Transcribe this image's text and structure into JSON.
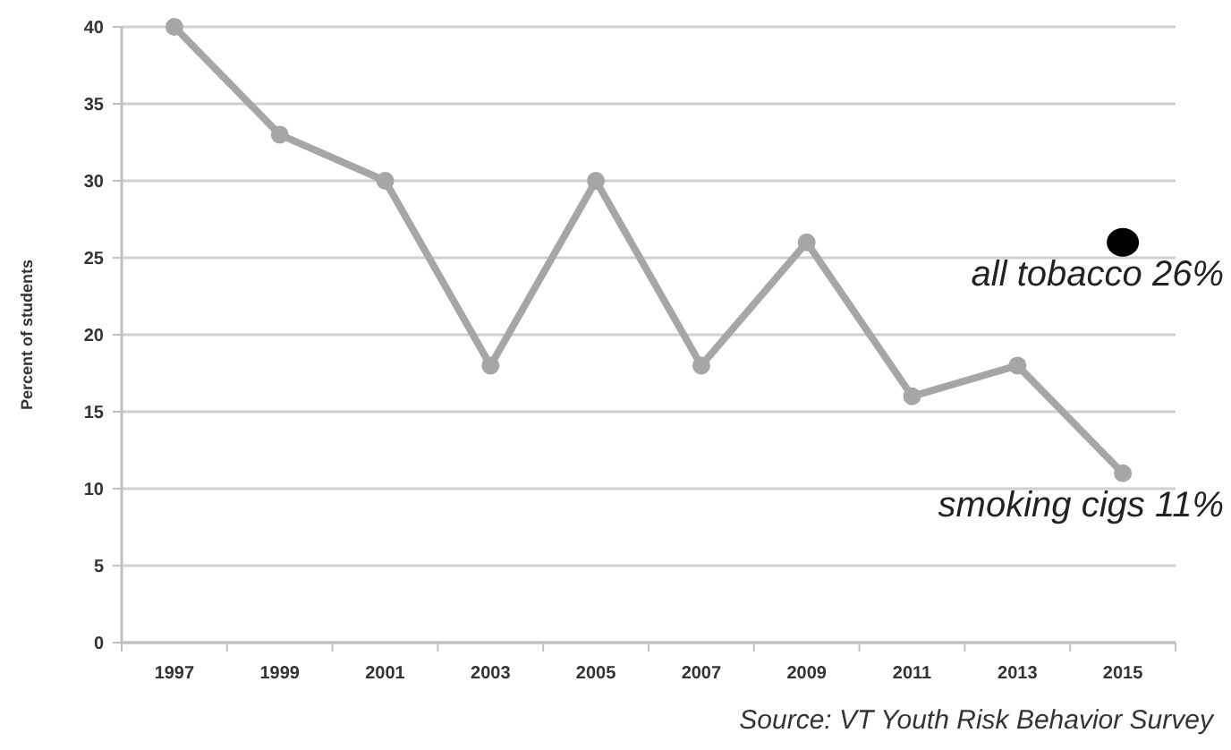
{
  "chart_data": {
    "type": "line",
    "ylabel": "Percent of students",
    "categories": [
      "1997",
      "1999",
      "2001",
      "2003",
      "2005",
      "2007",
      "2009",
      "2011",
      "2013",
      "2015"
    ],
    "series": [
      {
        "color": "#a6a6a6",
        "values": [
          40,
          33,
          30,
          18,
          30,
          18,
          26,
          16,
          18,
          11
        ]
      },
      {
        "type": "scatter",
        "color": "#000000",
        "values": [
          null,
          null,
          null,
          null,
          null,
          null,
          null,
          null,
          null,
          26
        ]
      }
    ],
    "ylim": [
      0,
      40
    ],
    "yticks": [
      0,
      5,
      10,
      15,
      20,
      25,
      30,
      35,
      40
    ],
    "grid": "y",
    "marker": "circle",
    "line_style": "solid",
    "annotations": [
      {
        "text": "all tobacco 26%",
        "x": "2015",
        "y": 26
      },
      {
        "text": "smoking cigs 11%",
        "x": "2015",
        "y": 11
      },
      "Source: VT Youth Risk Behavior Survey"
    ]
  }
}
